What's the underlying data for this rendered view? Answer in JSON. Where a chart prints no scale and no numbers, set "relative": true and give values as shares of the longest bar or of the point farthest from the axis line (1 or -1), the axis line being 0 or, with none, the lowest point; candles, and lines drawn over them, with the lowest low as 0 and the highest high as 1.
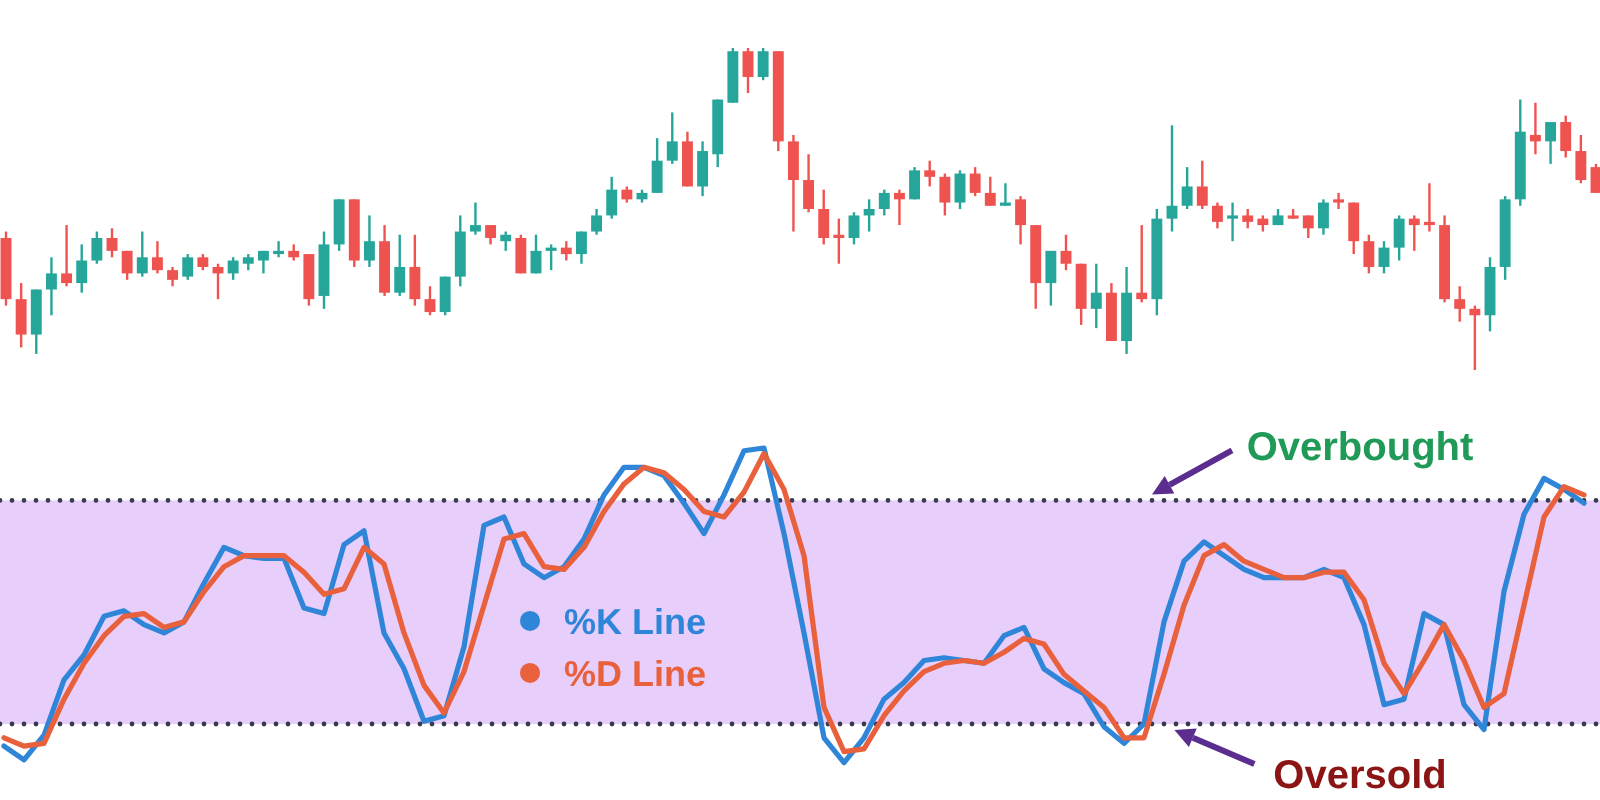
{
  "chart_data": [
    {
      "type": "candlestick",
      "relative": true,
      "categories": [
        null,
        null,
        null,
        null,
        null,
        null,
        null,
        null,
        null,
        null,
        null,
        null,
        null,
        null,
        null,
        null,
        null,
        null,
        null,
        null,
        null,
        null,
        null,
        null,
        null,
        null,
        null,
        null,
        null,
        null,
        null,
        null,
        null,
        null,
        null,
        null,
        null,
        null,
        null,
        null,
        null,
        null,
        null,
        null,
        null,
        null,
        null,
        null,
        null,
        null,
        null,
        null,
        null,
        null,
        null,
        null,
        null,
        null,
        null,
        null,
        null,
        null,
        null,
        null,
        null,
        null,
        null,
        null,
        null,
        null,
        null,
        null,
        null,
        null,
        null,
        null,
        null,
        null,
        null,
        null,
        null,
        null,
        null,
        null,
        null,
        null,
        null,
        null,
        null,
        null,
        null,
        null,
        null,
        null,
        null,
        null,
        null,
        null,
        null,
        null,
        null,
        null,
        null,
        null,
        null,
        null
      ],
      "ohlc": [
        [
          0.41,
          0.43,
          0.2,
          0.22
        ],
        [
          0.22,
          0.27,
          0.07,
          0.11
        ],
        [
          0.11,
          0.25,
          0.05,
          0.25
        ],
        [
          0.25,
          0.35,
          0.17,
          0.3
        ],
        [
          0.3,
          0.45,
          0.26,
          0.27
        ],
        [
          0.27,
          0.39,
          0.24,
          0.34
        ],
        [
          0.34,
          0.43,
          0.33,
          0.41
        ],
        [
          0.41,
          0.44,
          0.35,
          0.37
        ],
        [
          0.37,
          0.37,
          0.28,
          0.3
        ],
        [
          0.3,
          0.43,
          0.29,
          0.35
        ],
        [
          0.35,
          0.4,
          0.3,
          0.31
        ],
        [
          0.31,
          0.32,
          0.26,
          0.28
        ],
        [
          0.29,
          0.36,
          0.28,
          0.35
        ],
        [
          0.35,
          0.36,
          0.31,
          0.32
        ],
        [
          0.32,
          0.33,
          0.22,
          0.3
        ],
        [
          0.3,
          0.35,
          0.28,
          0.34
        ],
        [
          0.33,
          0.36,
          0.31,
          0.35
        ],
        [
          0.34,
          0.37,
          0.3,
          0.37
        ],
        [
          0.36,
          0.4,
          0.35,
          0.37
        ],
        [
          0.37,
          0.39,
          0.34,
          0.35
        ],
        [
          0.36,
          0.36,
          0.2,
          0.22
        ],
        [
          0.23,
          0.43,
          0.19,
          0.39
        ],
        [
          0.39,
          0.53,
          0.37,
          0.53
        ],
        [
          0.53,
          0.53,
          0.32,
          0.34
        ],
        [
          0.34,
          0.48,
          0.32,
          0.4
        ],
        [
          0.4,
          0.45,
          0.23,
          0.24
        ],
        [
          0.24,
          0.42,
          0.23,
          0.32
        ],
        [
          0.32,
          0.42,
          0.2,
          0.22
        ],
        [
          0.22,
          0.26,
          0.17,
          0.18
        ],
        [
          0.18,
          0.29,
          0.17,
          0.29
        ],
        [
          0.29,
          0.48,
          0.26,
          0.43
        ],
        [
          0.43,
          0.52,
          0.42,
          0.45
        ],
        [
          0.45,
          0.45,
          0.39,
          0.41
        ],
        [
          0.4,
          0.43,
          0.37,
          0.42
        ],
        [
          0.41,
          0.42,
          0.3,
          0.3
        ],
        [
          0.3,
          0.42,
          0.3,
          0.37
        ],
        [
          0.37,
          0.39,
          0.31,
          0.38
        ],
        [
          0.38,
          0.4,
          0.34,
          0.36
        ],
        [
          0.36,
          0.43,
          0.33,
          0.43
        ],
        [
          0.43,
          0.5,
          0.42,
          0.48
        ],
        [
          0.48,
          0.6,
          0.47,
          0.56
        ],
        [
          0.56,
          0.57,
          0.52,
          0.53
        ],
        [
          0.53,
          0.56,
          0.52,
          0.55
        ],
        [
          0.55,
          0.72,
          0.55,
          0.65
        ],
        [
          0.65,
          0.8,
          0.64,
          0.71
        ],
        [
          0.71,
          0.74,
          0.57,
          0.57
        ],
        [
          0.57,
          0.71,
          0.54,
          0.68
        ],
        [
          0.67,
          0.84,
          0.63,
          0.84
        ],
        [
          0.83,
          1.0,
          0.83,
          0.99
        ],
        [
          0.99,
          1.0,
          0.86,
          0.91
        ],
        [
          0.91,
          1.0,
          0.9,
          0.99
        ],
        [
          0.99,
          0.99,
          0.68,
          0.71
        ],
        [
          0.71,
          0.73,
          0.43,
          0.59
        ],
        [
          0.59,
          0.67,
          0.49,
          0.5
        ],
        [
          0.5,
          0.56,
          0.39,
          0.41
        ],
        [
          0.42,
          0.47,
          0.33,
          0.41
        ],
        [
          0.41,
          0.49,
          0.39,
          0.48
        ],
        [
          0.48,
          0.53,
          0.43,
          0.5
        ],
        [
          0.5,
          0.56,
          0.48,
          0.55
        ],
        [
          0.55,
          0.56,
          0.45,
          0.53
        ],
        [
          0.53,
          0.63,
          0.53,
          0.62
        ],
        [
          0.62,
          0.65,
          0.57,
          0.6
        ],
        [
          0.6,
          0.61,
          0.48,
          0.52
        ],
        [
          0.52,
          0.62,
          0.5,
          0.61
        ],
        [
          0.61,
          0.63,
          0.54,
          0.55
        ],
        [
          0.55,
          0.6,
          0.51,
          0.51
        ],
        [
          0.51,
          0.58,
          0.51,
          0.52
        ],
        [
          0.53,
          0.54,
          0.39,
          0.45
        ],
        [
          0.45,
          0.45,
          0.19,
          0.27
        ],
        [
          0.27,
          0.37,
          0.2,
          0.37
        ],
        [
          0.37,
          0.42,
          0.31,
          0.33
        ],
        [
          0.33,
          0.33,
          0.14,
          0.19
        ],
        [
          0.19,
          0.33,
          0.13,
          0.24
        ],
        [
          0.24,
          0.27,
          0.09,
          0.09
        ],
        [
          0.09,
          0.32,
          0.05,
          0.24
        ],
        [
          0.24,
          0.45,
          0.21,
          0.22
        ],
        [
          0.22,
          0.5,
          0.17,
          0.47
        ],
        [
          0.47,
          0.76,
          0.43,
          0.51
        ],
        [
          0.51,
          0.63,
          0.5,
          0.57
        ],
        [
          0.57,
          0.65,
          0.5,
          0.51
        ],
        [
          0.51,
          0.52,
          0.44,
          0.46
        ],
        [
          0.47,
          0.52,
          0.4,
          0.48
        ],
        [
          0.48,
          0.5,
          0.44,
          0.46
        ],
        [
          0.47,
          0.48,
          0.43,
          0.45
        ],
        [
          0.45,
          0.5,
          0.45,
          0.48
        ],
        [
          0.48,
          0.5,
          0.47,
          0.47
        ],
        [
          0.48,
          0.48,
          0.41,
          0.44
        ],
        [
          0.44,
          0.53,
          0.42,
          0.52
        ],
        [
          0.53,
          0.55,
          0.5,
          0.52
        ],
        [
          0.52,
          0.52,
          0.36,
          0.4
        ],
        [
          0.4,
          0.42,
          0.3,
          0.32
        ],
        [
          0.32,
          0.4,
          0.3,
          0.38
        ],
        [
          0.38,
          0.48,
          0.34,
          0.47
        ],
        [
          0.47,
          0.48,
          0.37,
          0.45
        ],
        [
          0.46,
          0.58,
          0.43,
          0.45
        ],
        [
          0.45,
          0.48,
          0.21,
          0.22
        ],
        [
          0.22,
          0.26,
          0.15,
          0.19
        ],
        [
          0.19,
          0.2,
          0.0,
          0.17
        ],
        [
          0.17,
          0.35,
          0.12,
          0.32
        ],
        [
          0.32,
          0.54,
          0.28,
          0.53
        ],
        [
          0.53,
          0.84,
          0.51,
          0.74
        ],
        [
          0.73,
          0.83,
          0.67,
          0.71
        ],
        [
          0.71,
          0.77,
          0.64,
          0.77
        ],
        [
          0.77,
          0.79,
          0.66,
          0.68
        ],
        [
          0.68,
          0.73,
          0.58,
          0.59
        ],
        [
          0.63,
          0.64,
          0.55,
          0.55
        ]
      ],
      "colors": [
        "#ef5350",
        "#ef5350",
        "#26a69a",
        "#26a69a",
        "#ef5350",
        "#26a69a",
        "#26a69a",
        "#ef5350",
        "#ef5350",
        "#26a69a",
        "#ef5350",
        "#ef5350",
        "#26a69a",
        "#ef5350",
        "#ef5350",
        "#26a69a",
        "#26a69a",
        "#26a69a",
        "#26a69a",
        "#ef5350",
        "#ef5350",
        "#26a69a",
        "#26a69a",
        "#ef5350",
        "#26a69a",
        "#ef5350",
        "#26a69a",
        "#ef5350",
        "#ef5350",
        "#26a69a",
        "#26a69a",
        "#26a69a",
        "#ef5350",
        "#26a69a",
        "#ef5350",
        "#26a69a",
        "#26a69a",
        "#ef5350",
        "#26a69a",
        "#26a69a",
        "#26a69a",
        "#ef5350",
        "#26a69a",
        "#26a69a",
        "#26a69a",
        "#ef5350",
        "#26a69a",
        "#26a69a",
        "#26a69a",
        "#ef5350",
        "#26a69a",
        "#ef5350",
        "#ef5350",
        "#ef5350",
        "#ef5350",
        "#ef5350",
        "#26a69a",
        "#26a69a",
        "#26a69a",
        "#ef5350",
        "#26a69a",
        "#ef5350",
        "#ef5350",
        "#26a69a",
        "#ef5350",
        "#ef5350",
        "#26a69a",
        "#ef5350",
        "#ef5350",
        "#26a69a",
        "#ef5350",
        "#ef5350",
        "#26a69a",
        "#ef5350",
        "#26a69a",
        "#ef5350",
        "#26a69a",
        "#26a69a",
        "#26a69a",
        "#ef5350",
        "#ef5350",
        "#26a69a",
        "#ef5350",
        "#ef5350",
        "#26a69a",
        "#ef5350",
        "#ef5350",
        "#26a69a",
        "#ef5350",
        "#ef5350",
        "#ef5350",
        "#26a69a",
        "#26a69a",
        "#ef5350",
        "#ef5350",
        "#ef5350",
        "#ef5350",
        "#ef5350",
        "#26a69a",
        "#26a69a",
        "#26a69a",
        "#ef5350",
        "#26a69a",
        "#ef5350",
        "#ef5350",
        "#ef5350"
      ]
    },
    {
      "type": "line",
      "relative": true,
      "categories": [
        null,
        null,
        null,
        null,
        null,
        null,
        null,
        null,
        null,
        null,
        null,
        null,
        null,
        null,
        null,
        null,
        null,
        null,
        null,
        null,
        null,
        null,
        null,
        null,
        null,
        null,
        null,
        null,
        null,
        null,
        null,
        null,
        null,
        null,
        null,
        null,
        null,
        null,
        null,
        null,
        null,
        null,
        null,
        null,
        null,
        null,
        null,
        null,
        null,
        null,
        null,
        null,
        null,
        null,
        null,
        null,
        null,
        null,
        null,
        null,
        null,
        null,
        null,
        null,
        null,
        null,
        null,
        null,
        null,
        null,
        null,
        null,
        null,
        null,
        null,
        null,
        null,
        null,
        null,
        null
      ],
      "series": [
        {
          "name": "%K Line",
          "color": "#2f86d8",
          "values": [
            -0.08,
            -0.13,
            -0.04,
            0.16,
            0.25,
            0.39,
            0.41,
            0.36,
            0.33,
            0.37,
            0.51,
            0.64,
            0.61,
            0.6,
            0.6,
            0.42,
            0.4,
            0.65,
            0.7,
            0.33,
            0.2,
            0.01,
            0.03,
            0.28,
            0.72,
            0.75,
            0.58,
            0.53,
            0.57,
            0.67,
            0.83,
            0.93,
            0.93,
            0.9,
            0.8,
            0.69,
            0.83,
            0.99,
            1.0,
            0.69,
            0.33,
            -0.05,
            -0.14,
            -0.05,
            0.09,
            0.15,
            0.23,
            0.24,
            0.23,
            0.22,
            0.32,
            0.35,
            0.2,
            0.15,
            0.11,
            -0.01,
            -0.07,
            0.0,
            0.37,
            0.59,
            0.66,
            0.61,
            0.56,
            0.53,
            0.53,
            0.53,
            0.56,
            0.53,
            0.36,
            0.07,
            0.09,
            0.4,
            0.36,
            0.07,
            -0.02,
            0.48,
            0.76,
            0.89,
            0.85,
            0.8
          ]
        },
        {
          "name": "%D Line",
          "color": "#e8603c",
          "values": [
            -0.05,
            -0.08,
            -0.07,
            0.09,
            0.22,
            0.32,
            0.39,
            0.4,
            0.35,
            0.37,
            0.48,
            0.57,
            0.61,
            0.61,
            0.61,
            0.55,
            0.47,
            0.49,
            0.64,
            0.58,
            0.33,
            0.14,
            0.04,
            0.19,
            0.43,
            0.67,
            0.69,
            0.57,
            0.56,
            0.64,
            0.77,
            0.87,
            0.93,
            0.91,
            0.85,
            0.77,
            0.75,
            0.84,
            0.98,
            0.85,
            0.61,
            0.06,
            -0.1,
            -0.09,
            0.03,
            0.12,
            0.19,
            0.22,
            0.23,
            0.22,
            0.26,
            0.31,
            0.29,
            0.18,
            0.12,
            0.06,
            -0.05,
            -0.05,
            0.18,
            0.43,
            0.61,
            0.65,
            0.59,
            0.56,
            0.53,
            0.53,
            0.55,
            0.55,
            0.45,
            0.22,
            0.11,
            0.23,
            0.36,
            0.23,
            0.06,
            0.11,
            0.43,
            0.75,
            0.86,
            0.83
          ]
        }
      ],
      "bands": [
        {
          "axis": "y",
          "from": 0,
          "to": 0.81,
          "color": "#e8cefa"
        }
      ],
      "ref_lines": [
        {
          "axis": "y",
          "value": 0.81,
          "label": "Overbought",
          "color": "#3b3b4f",
          "line_style": "dotted"
        },
        {
          "axis": "y",
          "value": 0,
          "label": "Oversold",
          "color": "#3b3b4f",
          "line_style": "dotted"
        }
      ],
      "legend": "center"
    }
  ]
}
